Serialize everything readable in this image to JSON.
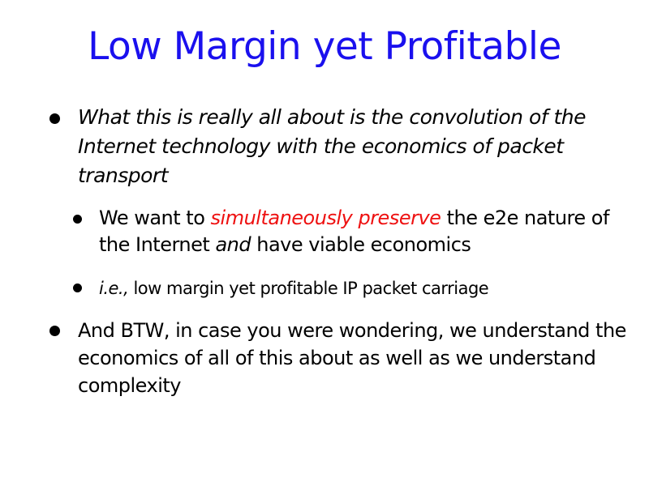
{
  "slide": {
    "title": "Low Margin yet Profitable",
    "accent_color": "#1a10ee",
    "highlight_color": "#ee1111",
    "bullets": [
      {
        "text": "What this is really all about is the convolution of the Internet technology with the economics of packet transport"
      },
      {
        "pre": "We want to ",
        "highlight": "simultaneously preserve",
        "mid": " the e2e nature of the Internet ",
        "emph": "and",
        "post": " have viable economics"
      },
      {
        "emph": "i.e.,",
        "post": " low margin yet profitable IP packet carriage"
      },
      {
        "text": "And BTW, in case you were wondering, we understand the economics of all of this about as well as we understand complexity"
      }
    ]
  }
}
